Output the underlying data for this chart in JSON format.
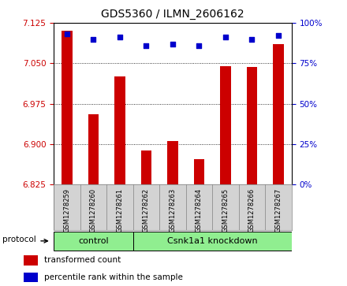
{
  "title": "GDS5360 / ILMN_2606162",
  "samples": [
    "GSM1278259",
    "GSM1278260",
    "GSM1278261",
    "GSM1278262",
    "GSM1278263",
    "GSM1278264",
    "GSM1278265",
    "GSM1278266",
    "GSM1278267"
  ],
  "transformed_count": [
    7.11,
    6.955,
    7.025,
    6.888,
    6.905,
    6.872,
    7.045,
    7.043,
    7.085
  ],
  "percentile_rank": [
    93,
    90,
    91,
    86,
    87,
    86,
    91,
    90,
    92
  ],
  "y_min": 6.825,
  "y_max": 7.125,
  "y_ticks": [
    6.825,
    6.9,
    6.975,
    7.05,
    7.125
  ],
  "y2_ticks": [
    0,
    25,
    50,
    75,
    100
  ],
  "bar_color": "#cc0000",
  "dot_color": "#0000cc",
  "groups": [
    {
      "label": "control",
      "start": 0,
      "end": 3
    },
    {
      "label": "Csnk1a1 knockdown",
      "start": 3,
      "end": 9
    }
  ],
  "group_color": "#90ee90",
  "protocol_label": "protocol",
  "legend_items": [
    {
      "label": "transformed count",
      "color": "#cc0000"
    },
    {
      "label": "percentile rank within the sample",
      "color": "#0000cc"
    }
  ],
  "background_color": "#ffffff",
  "sample_bg_color": "#d3d3d3",
  "tick_color_left": "#cc0000",
  "tick_color_right": "#0000cc"
}
